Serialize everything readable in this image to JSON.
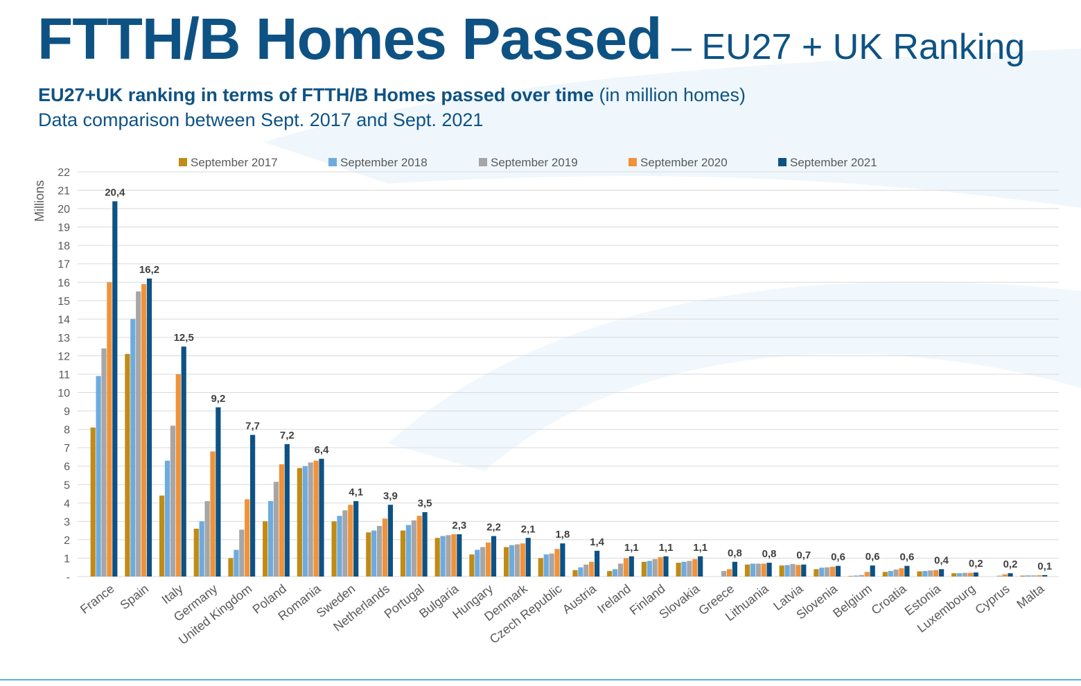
{
  "header": {
    "title_main": "FTTH/B Homes Passed",
    "title_sub": "– EU27 + UK Ranking",
    "subtitle_bold": "EU27+UK ranking in terms of FTTH/B Homes passed over time",
    "subtitle_unit": "(in million homes)",
    "subtitle_line2": "Data comparison between Sept. 2017 and Sept. 2021"
  },
  "colors": {
    "brand": "#0e5284",
    "grid": "#d9d9d9",
    "axis_text": "#595959"
  },
  "chart_data": {
    "type": "bar",
    "ylabel": "Millions",
    "ylim": [
      0,
      22
    ],
    "yticks": [
      "-",
      "1",
      "2",
      "3",
      "4",
      "5",
      "6",
      "7",
      "8",
      "9",
      "10",
      "11",
      "12",
      "13",
      "14",
      "15",
      "16",
      "17",
      "18",
      "19",
      "20",
      "21",
      "22"
    ],
    "grid": true,
    "legend_position": "top",
    "categories": [
      "France",
      "Spain",
      "Italy",
      "Germany",
      "United Kingdom",
      "Poland",
      "Romania",
      "Sweden",
      "Netherlands",
      "Portugal",
      "Bulgaria",
      "Hungary",
      "Denmark",
      "Czech Republic",
      "Austria",
      "Ireland",
      "Finland",
      "Slovakia",
      "Greece",
      "Lithuania",
      "Latvia",
      "Slovenia",
      "Belgium",
      "Croatia",
      "Estonia",
      "Luxembourg",
      "Cyprus",
      "Malta"
    ],
    "series": [
      {
        "name": "September 2017",
        "color": "#c08b16",
        "values": [
          8.1,
          12.1,
          4.4,
          2.6,
          1.0,
          3.0,
          5.9,
          3.0,
          2.4,
          2.5,
          2.1,
          1.2,
          1.6,
          1.0,
          0.35,
          0.3,
          0.8,
          0.75,
          0.0,
          0.65,
          0.6,
          0.4,
          0.03,
          0.25,
          0.28,
          0.18,
          0.0,
          0.05
        ]
      },
      {
        "name": "September 2018",
        "color": "#6dabdf",
        "values": [
          10.9,
          14.0,
          6.3,
          3.0,
          1.45,
          4.1,
          6.0,
          3.3,
          2.5,
          2.8,
          2.2,
          1.45,
          1.7,
          1.2,
          0.5,
          0.4,
          0.85,
          0.8,
          0.0,
          0.7,
          0.62,
          0.48,
          0.05,
          0.3,
          0.3,
          0.18,
          0.0,
          0.06
        ]
      },
      {
        "name": "September 2019",
        "color": "#a6a6a6",
        "values": [
          12.4,
          15.5,
          8.2,
          4.1,
          2.55,
          5.15,
          6.2,
          3.6,
          2.75,
          3.05,
          2.25,
          1.6,
          1.75,
          1.25,
          0.65,
          0.7,
          0.95,
          0.85,
          0.3,
          0.7,
          0.68,
          0.5,
          0.08,
          0.38,
          0.33,
          0.2,
          0.05,
          0.06
        ]
      },
      {
        "name": "September 2020",
        "color": "#f0923a",
        "values": [
          16.0,
          15.9,
          11.0,
          6.8,
          4.2,
          6.1,
          6.3,
          3.9,
          3.15,
          3.3,
          2.3,
          1.85,
          1.8,
          1.5,
          0.8,
          1.0,
          1.05,
          0.95,
          0.4,
          0.7,
          0.63,
          0.53,
          0.25,
          0.45,
          0.35,
          0.2,
          0.12,
          0.07
        ]
      },
      {
        "name": "September 2021",
        "color": "#0e5284",
        "values": [
          20.4,
          16.2,
          12.5,
          9.2,
          7.7,
          7.2,
          6.4,
          4.1,
          3.9,
          3.5,
          2.3,
          2.2,
          2.1,
          1.8,
          1.4,
          1.1,
          1.1,
          1.1,
          0.8,
          0.75,
          0.65,
          0.58,
          0.6,
          0.58,
          0.4,
          0.22,
          0.18,
          0.08
        ]
      }
    ],
    "data_labels": [
      "20,4",
      "16,2",
      "12,5",
      "9,2",
      "7,7",
      "7,2",
      "6,4",
      "4,1",
      "3,9",
      "3,5",
      "2,3",
      "2,2",
      "2,1",
      "1,8",
      "1,4",
      "1,1",
      "1,1",
      "1,1",
      "0,8",
      "0,8",
      "0,7",
      "0,6",
      "0,6",
      "0,6",
      "0,4",
      "0,2",
      "0,2",
      "0,1"
    ]
  }
}
